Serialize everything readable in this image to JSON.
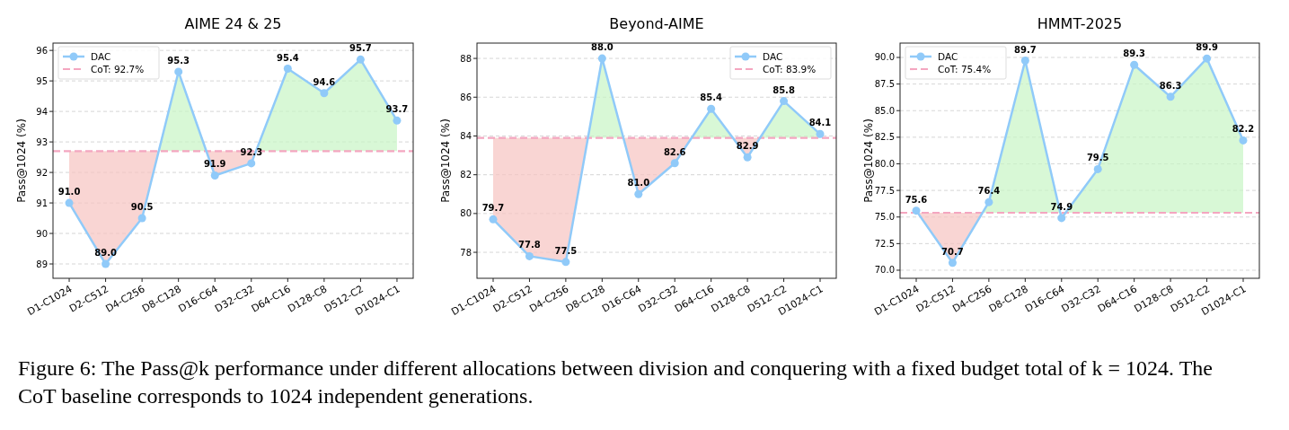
{
  "chart_data": [
    {
      "type": "line",
      "title": "AIME 24 & 25",
      "ylabel": "Pass@1024 (%)",
      "categories": [
        "D1-C1024",
        "D2-C512",
        "D4-C256",
        "D8-C128",
        "D16-C64",
        "D32-C32",
        "D64-C16",
        "D128-C8",
        "D512-C2",
        "D1024-C1"
      ],
      "series": [
        {
          "name": "DAC",
          "color": "#90caf9",
          "values": [
            91.0,
            89.0,
            90.5,
            95.3,
            91.9,
            92.3,
            95.4,
            94.6,
            95.7,
            93.7
          ],
          "value_labels": [
            "91.0",
            "89.0",
            "90.5",
            "95.3",
            "91.9",
            "92.3",
            "95.4",
            "94.6",
            "95.7",
            "93.7"
          ]
        }
      ],
      "ref_lines": [
        {
          "axis": "y",
          "value": 92.7,
          "label": "CoT: 92.7%",
          "color": "#f4a6c0",
          "line_style": "dashed"
        }
      ],
      "ylim": [
        88.53,
        96.24
      ],
      "yticks": [
        89,
        90,
        91,
        92,
        93,
        94,
        95,
        96
      ],
      "grid": "y",
      "legend": "top left",
      "marker": "circle",
      "line_style": "solid",
      "annotations": [
        "Figure 6: The Pass@k performance under different allocations between division and conquering with a fixed budget total of k = 1024. The CoT baseline corresponds to 1024 independent generations."
      ]
    },
    {
      "type": "line",
      "title": "Beyond-AIME",
      "ylabel": "Pass@1024 (%)",
      "categories": [
        "D1-C1024",
        "D2-C512",
        "D4-C256",
        "D8-C128",
        "D16-C64",
        "D32-C32",
        "D64-C16",
        "D128-C8",
        "D512-C2",
        "D1024-C1"
      ],
      "series": [
        {
          "name": "DAC",
          "color": "#90caf9",
          "values": [
            79.7,
            77.8,
            77.5,
            88.0,
            81.0,
            82.6,
            85.4,
            82.9,
            85.8,
            84.1
          ],
          "value_labels": [
            "79.7",
            "77.8",
            "77.5",
            "88.0",
            "81.0",
            "82.6",
            "85.4",
            "82.9",
            "85.8",
            "84.1"
          ]
        }
      ],
      "ref_lines": [
        {
          "axis": "y",
          "value": 83.9,
          "label": "CoT: 83.9%",
          "color": "#f4a6c0",
          "line_style": "dashed"
        }
      ],
      "ylim": [
        76.66,
        88.79
      ],
      "yticks": [
        78,
        80,
        82,
        84,
        86,
        88
      ],
      "grid": "y",
      "legend": "top right",
      "marker": "circle",
      "line_style": "solid"
    },
    {
      "type": "line",
      "title": "HMMT-2025",
      "ylabel": "Pass@1024 (%)",
      "categories": [
        "D1-C1024",
        "D2-C512",
        "D4-C256",
        "D8-C128",
        "D16-C64",
        "D32-C32",
        "D64-C16",
        "D128-C8",
        "D512-C2",
        "D1024-C1"
      ],
      "series": [
        {
          "name": "DAC",
          "color": "#90caf9",
          "values": [
            75.6,
            70.7,
            76.4,
            89.7,
            74.9,
            79.5,
            89.3,
            86.3,
            89.9,
            82.2
          ],
          "value_labels": [
            "75.6",
            "70.7",
            "76.4",
            "89.7",
            "74.9",
            "79.5",
            "89.3",
            "86.3",
            "89.9",
            "82.2"
          ]
        }
      ],
      "ref_lines": [
        {
          "axis": "y",
          "value": 75.4,
          "label": "CoT: 75.4%",
          "color": "#f4a6c0",
          "line_style": "dashed"
        }
      ],
      "ylim": [
        69.24,
        91.35
      ],
      "yticks": [
        {
          "value": 70,
          "label": "70.0"
        },
        {
          "value": 72.5,
          "label": "72.5"
        },
        {
          "value": 75,
          "label": "75.0"
        },
        {
          "value": 77.5,
          "label": "77.5"
        },
        {
          "value": 80,
          "label": "80.0"
        },
        {
          "value": 82.5,
          "label": "82.5"
        },
        {
          "value": 85,
          "label": "85.0"
        },
        {
          "value": 87.5,
          "label": "87.5"
        },
        {
          "value": 90,
          "label": "90.0"
        }
      ],
      "grid": "y",
      "legend": "top left",
      "marker": "circle",
      "line_style": "solid"
    }
  ]
}
